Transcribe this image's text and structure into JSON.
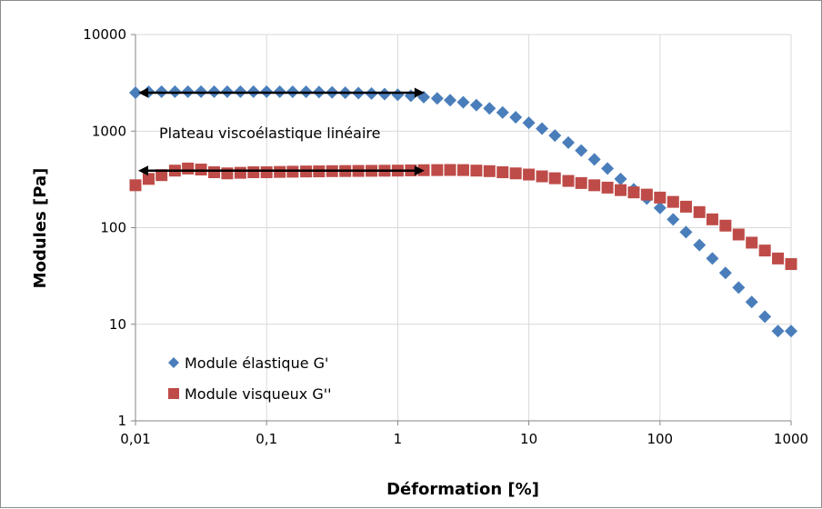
{
  "chart_data": {
    "type": "scatter",
    "xscale": "log",
    "yscale": "log",
    "xlim": [
      0.01,
      1000
    ],
    "ylim": [
      1,
      10000
    ],
    "xticks": [
      "0,01",
      "0,1",
      "1",
      "10",
      "100",
      "1000"
    ],
    "yticks": [
      "1",
      "10",
      "100",
      "1000",
      "10000"
    ],
    "xlabel": "Déformation [%]",
    "ylabel": "Modules [Pa]",
    "grid": "horizontal major and vertical major gridlines",
    "legend_position": "bottom-left",
    "annotation": {
      "text": "Plateau viscoélastique linéaire",
      "arrows": [
        {
          "series": "Module élastique G'",
          "x_from": 0.01,
          "x_to": 1.6,
          "y": 2500
        },
        {
          "series": "Module visqueux G''",
          "x_from": 0.01,
          "x_to": 1.6,
          "y": 390
        }
      ]
    },
    "series": [
      {
        "name": "Module élastique G'",
        "marker": "diamond",
        "color": "#4a7ebb",
        "x": [
          0.01,
          0.0126,
          0.0158,
          0.02,
          0.0251,
          0.0316,
          0.0398,
          0.0501,
          0.0631,
          0.0794,
          0.1,
          0.126,
          0.158,
          0.2,
          0.251,
          0.316,
          0.398,
          0.501,
          0.631,
          0.794,
          1,
          1.26,
          1.58,
          2,
          2.51,
          3.16,
          3.98,
          5.01,
          6.31,
          7.94,
          10,
          12.6,
          15.8,
          20,
          25.1,
          31.6,
          39.8,
          50.1,
          63.1,
          79.4,
          100,
          126,
          158,
          200,
          251,
          316,
          398,
          501,
          631,
          794,
          1000
        ],
        "values": [
          2500,
          2550,
          2560,
          2560,
          2560,
          2560,
          2560,
          2560,
          2560,
          2560,
          2560,
          2560,
          2550,
          2550,
          2540,
          2520,
          2500,
          2480,
          2450,
          2420,
          2380,
          2320,
          2250,
          2180,
          2090,
          1990,
          1860,
          1720,
          1560,
          1390,
          1220,
          1060,
          900,
          760,
          630,
          510,
          410,
          320,
          250,
          200,
          160,
          122,
          90,
          66,
          48,
          34,
          24,
          17,
          12,
          8.5,
          8.5
        ]
      },
      {
        "name": "Module visqueux G''",
        "marker": "square",
        "color": "#be4b48",
        "x": [
          0.01,
          0.0126,
          0.0158,
          0.02,
          0.0251,
          0.0316,
          0.0398,
          0.0501,
          0.0631,
          0.0794,
          0.1,
          0.126,
          0.158,
          0.2,
          0.251,
          0.316,
          0.398,
          0.501,
          0.631,
          0.794,
          1,
          1.26,
          1.58,
          2,
          2.51,
          3.16,
          3.98,
          5.01,
          6.31,
          7.94,
          10,
          12.6,
          15.8,
          20,
          25.1,
          31.6,
          39.8,
          50.1,
          63.1,
          79.4,
          100,
          126,
          158,
          200,
          251,
          316,
          398,
          501,
          631,
          794,
          1000
        ],
        "values": [
          275,
          320,
          350,
          390,
          410,
          400,
          375,
          365,
          370,
          375,
          375,
          378,
          380,
          382,
          383,
          385,
          386,
          387,
          388,
          389,
          390,
          392,
          394,
          395,
          396,
          395,
          390,
          385,
          375,
          365,
          355,
          340,
          325,
          305,
          290,
          275,
          260,
          245,
          232,
          220,
          205,
          185,
          165,
          145,
          122,
          105,
          85,
          70,
          58,
          48,
          42
        ]
      }
    ]
  }
}
